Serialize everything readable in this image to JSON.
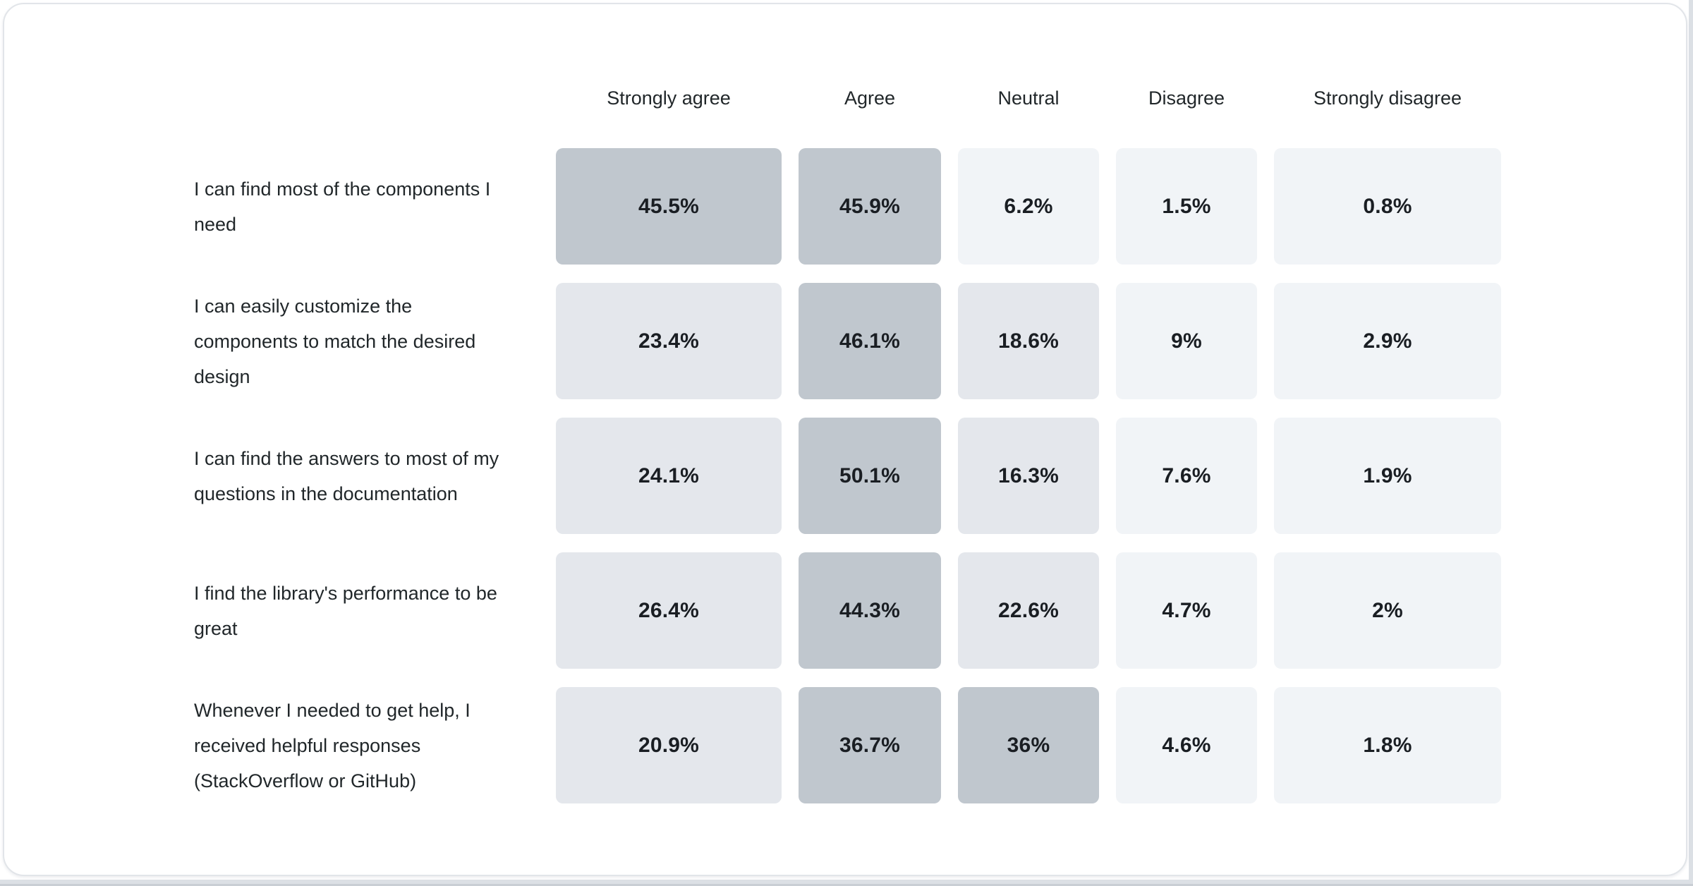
{
  "page": {
    "card_border_color": "#E2E5E9",
    "card_background": "#FFFFFF",
    "edge_strip_color": "#DCE0E5",
    "edge_strip_dark_color": "#C9CED4"
  },
  "chart_data": {
    "type": "heatmap",
    "title": "",
    "columns": [
      "Strongly agree",
      "Agree",
      "Neutral",
      "Disagree",
      "Strongly disagree"
    ],
    "rows": [
      {
        "label": "I can find most of the components I need",
        "values": [
          45.5,
          45.9,
          6.2,
          1.5,
          0.8
        ],
        "display": [
          "45.5%",
          "45.9%",
          "6.2%",
          "1.5%",
          "0.8%"
        ]
      },
      {
        "label": "I can easily customize the components to match the desired design",
        "values": [
          23.4,
          46.1,
          18.6,
          9,
          2.9
        ],
        "display": [
          "23.4%",
          "46.1%",
          "18.6%",
          "9%",
          "2.9%"
        ]
      },
      {
        "label": "I can find the answers to most of my questions in the documentation",
        "values": [
          24.1,
          50.1,
          16.3,
          7.6,
          1.9
        ],
        "display": [
          "24.1%",
          "50.1%",
          "16.3%",
          "7.6%",
          "1.9%"
        ]
      },
      {
        "label": "I find the library's performance to be great",
        "values": [
          26.4,
          44.3,
          22.6,
          4.7,
          2
        ],
        "display": [
          "26.4%",
          "44.3%",
          "22.6%",
          "4.7%",
          "2%"
        ]
      },
      {
        "label": "Whenever I needed to get help, I received helpful responses (StackOverflow or GitHub)",
        "values": [
          20.9,
          36.7,
          36,
          4.6,
          1.8
        ],
        "display": [
          "20.9%",
          "36.7%",
          "36%",
          "4.6%",
          "1.8%"
        ]
      }
    ],
    "color_scale": {
      "dark": "#C0C7CE",
      "medium": "#E4E7EC",
      "light": "#F1F4F7",
      "text_color": "#1A1E23",
      "thresholds": {
        "dark_min": 30,
        "medium_min": 10
      }
    },
    "legend_position": "none",
    "grid": false
  }
}
